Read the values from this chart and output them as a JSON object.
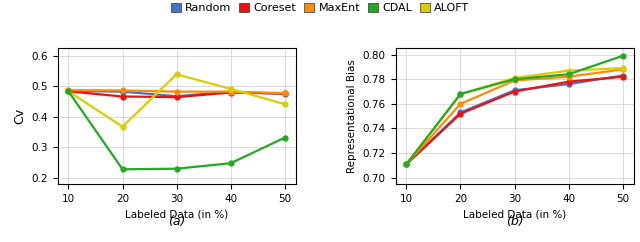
{
  "x": [
    10,
    20,
    30,
    40,
    50
  ],
  "plot_a": {
    "Random": [
      0.485,
      0.483,
      0.468,
      0.483,
      0.475
    ],
    "Coreset": [
      0.484,
      0.467,
      0.465,
      0.48,
      0.477
    ],
    "MaxEnt": [
      0.488,
      0.487,
      0.483,
      0.483,
      0.478
    ],
    "CDAL": [
      0.484,
      0.368,
      0.54,
      0.492,
      0.442
    ],
    "ALOFT": [
      0.484,
      0.228,
      0.23,
      0.248,
      0.332
    ]
  },
  "plot_b": {
    "Random": [
      0.711,
      0.753,
      0.771,
      0.776,
      0.783
    ],
    "Coreset": [
      0.711,
      0.752,
      0.77,
      0.778,
      0.782
    ],
    "MaxEnt": [
      0.711,
      0.76,
      0.779,
      0.782,
      0.788
    ],
    "CDAL": [
      0.711,
      0.768,
      0.781,
      0.787,
      0.789
    ],
    "ALOFT": [
      0.711,
      0.768,
      0.78,
      0.784,
      0.799
    ]
  },
  "line_colors": {
    "Random": "#4472C4",
    "Coreset": "#EE1111",
    "MaxEnt": "#FF8C00",
    "CDAL": "#DDCC00",
    "ALOFT": "#22AA22"
  },
  "legend_patch_colors": {
    "Random": "#4472C4",
    "Coreset": "#EE1111",
    "MaxEnt": "#FF8C00",
    "CDAL": "#22AA22",
    "ALOFT": "#DDCC00"
  },
  "legend_order": [
    "Random",
    "Coreset",
    "MaxEnt",
    "CDAL",
    "ALOFT"
  ],
  "ylim_a": [
    0.18,
    0.625
  ],
  "ylim_b": [
    0.695,
    0.805
  ],
  "yticks_a": [
    0.2,
    0.3,
    0.4,
    0.5,
    0.6
  ],
  "yticks_b": [
    0.7,
    0.72,
    0.74,
    0.76,
    0.78,
    0.8
  ],
  "xlabel": "Labeled Data (in %)",
  "ylabel_a": "Cv",
  "ylabel_b": "Representational Bias",
  "label_a": "(a)",
  "label_b": "(b)"
}
